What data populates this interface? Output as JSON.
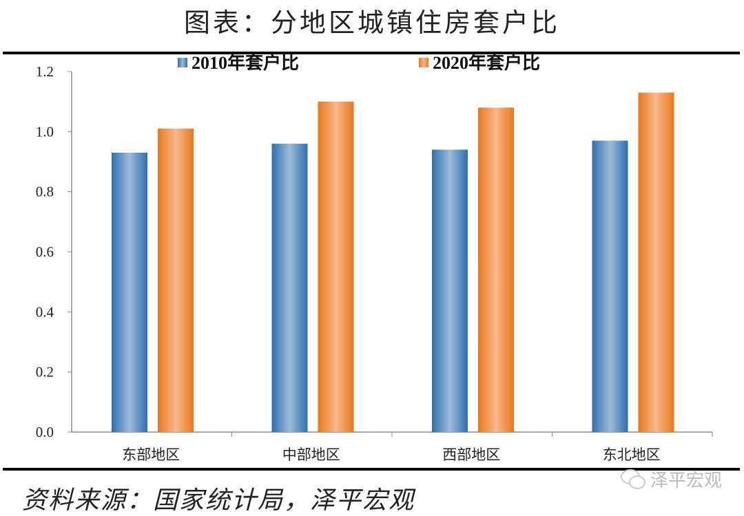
{
  "title": "图表：分地区城镇住房套户比",
  "source": "资料来源：国家统计局，泽平宏观",
  "watermark": {
    "text": "泽平宏观",
    "icon": "wechat-icon"
  },
  "chart_data": {
    "type": "bar",
    "categories": [
      "东部地区",
      "中部地区",
      "西部地区",
      "东北地区"
    ],
    "series": [
      {
        "name": "2010年套户比",
        "values": [
          0.93,
          0.96,
          0.94,
          0.97
        ],
        "color": "#3d7fbf"
      },
      {
        "name": "2020年套户比",
        "values": [
          1.01,
          1.1,
          1.08,
          1.13
        ],
        "color": "#f0883a"
      }
    ],
    "ylim": [
      0,
      1.2
    ],
    "yticks": [
      "0.0",
      "0.2",
      "0.4",
      "0.6",
      "0.8",
      "1.0",
      "1.2"
    ],
    "grid": false,
    "legend": "top"
  }
}
